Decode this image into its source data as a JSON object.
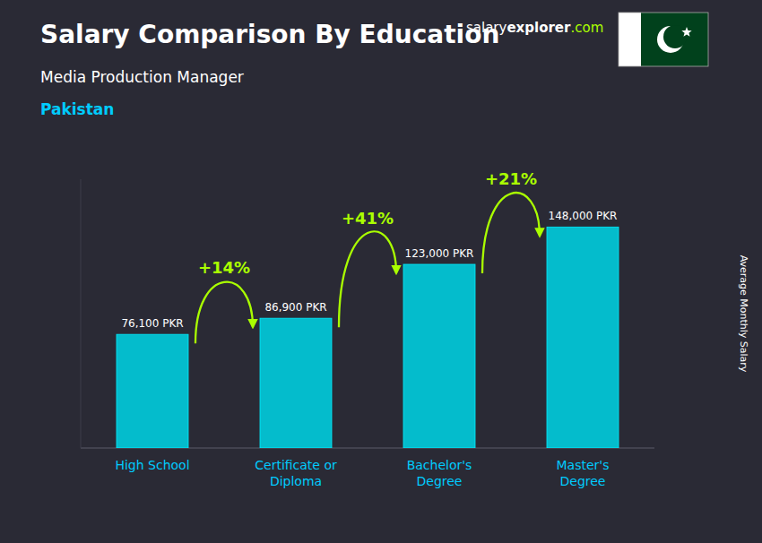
{
  "chart_data": {
    "type": "bar",
    "title": "Salary Comparison By Education",
    "subtitle": "Media Production Manager",
    "country": "Pakistan",
    "categories": [
      "High School",
      "Certificate or\nDiploma",
      "Bachelor's\nDegree",
      "Master's\nDegree"
    ],
    "values": [
      76100,
      86900,
      123000,
      148000
    ],
    "value_labels": [
      "76,100 PKR",
      "86,900 PKR",
      "123,000 PKR",
      "148,000 PKR"
    ],
    "data_labels": true,
    "annotations": [
      "+14%",
      "+41%",
      "+21%"
    ],
    "ylabel": "Average Monthly Salary",
    "source": [
      "salary",
      "explorer",
      ".com"
    ],
    "color": "#00ccdd",
    "ylim": [
      0,
      180000
    ],
    "tick_labels": false,
    "grid": false
  }
}
